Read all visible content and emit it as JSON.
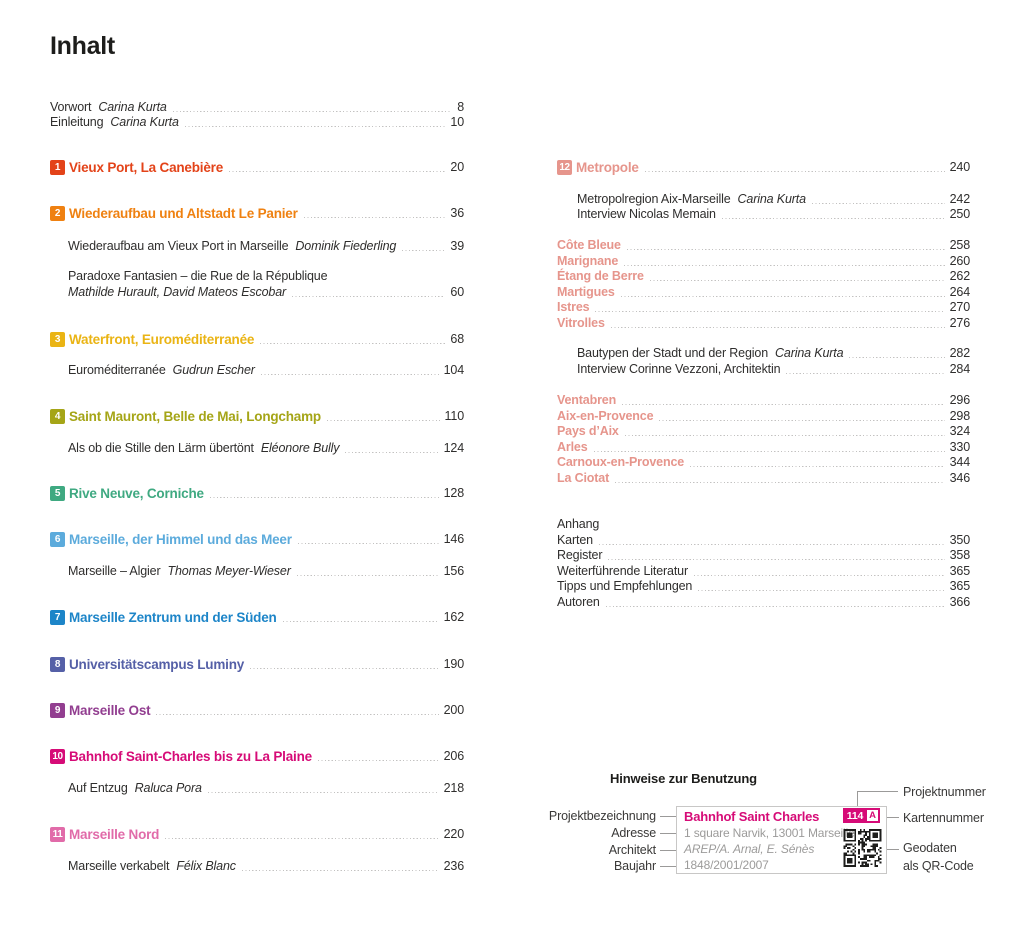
{
  "page_title": "Inhalt",
  "usage": {
    "heading": "Hinweise zur Benutzung",
    "left_labels": [
      "Projektbezeichnung",
      "Adresse",
      "Architekt",
      "Baujahr"
    ],
    "right_labels": [
      "Projektnummer",
      "Kartennummer",
      "Geodaten\nals QR-Code"
    ],
    "sample": {
      "title": "Bahnhof Saint Charles",
      "project_number": "114",
      "map_number": "A",
      "address": "1 square Narvik, 13001 Marseille",
      "architect": "AREP/A. Arnal, E. Sénès",
      "year": "1848/2001/2007"
    }
  },
  "toc_left": [
    {
      "type": "front",
      "text": "Vorwort",
      "author": "Carina Kurta",
      "page": "8"
    },
    {
      "type": "front",
      "text": "Einleitung",
      "author": "Carina Kurta",
      "page": "10"
    },
    {
      "type": "chapter",
      "num": "1",
      "color": "#e34319",
      "text": "Vieux Port, La Canebière",
      "page": "20"
    },
    {
      "type": "chapter",
      "num": "2",
      "color": "#ef8111",
      "text": "Wiederaufbau und Altstadt Le Panier",
      "page": "36"
    },
    {
      "type": "sub",
      "text": "Wiederaufbau am Vieux Port in Marseille",
      "author": "Dominik Fiederling",
      "page": "39"
    },
    {
      "type": "subline",
      "text": "Paradoxe Fantasien – die Rue de la République"
    },
    {
      "type": "subauthor",
      "author": "Mathilde Hurault, David Mateos Escobar",
      "page": "60"
    },
    {
      "type": "chapter",
      "num": "3",
      "color": "#eab414",
      "text": "Waterfront, Euroméditerranée",
      "page": "68"
    },
    {
      "type": "sub",
      "text": "Euroméditerranée",
      "author": "Gudrun Escher",
      "page": "104"
    },
    {
      "type": "chapter",
      "num": "4",
      "color": "#a5a517",
      "text": "Saint Mauront, Belle de Mai, Longchamp",
      "page": "110"
    },
    {
      "type": "sub",
      "text": "Als ob die Stille den Lärm übertönt",
      "author": "Eléonore Bully",
      "page": "124"
    },
    {
      "type": "chapter",
      "num": "5",
      "color": "#3fa981",
      "text": "Rive Neuve, Corniche",
      "page": "128"
    },
    {
      "type": "chapter",
      "num": "6",
      "color": "#5cabdc",
      "text": "Marseille, der Himmel und das Meer",
      "page": "146"
    },
    {
      "type": "sub",
      "text": "Marseille – Algier",
      "author": "Thomas Meyer-Wieser",
      "page": "156"
    },
    {
      "type": "chapter",
      "num": "7",
      "color": "#1d85c8",
      "text": "Marseille Zentrum und der Süden",
      "page": "162"
    },
    {
      "type": "chapter",
      "num": "8",
      "color": "#5560a7",
      "text": "Universitätscampus Luminy",
      "page": "190"
    },
    {
      "type": "chapter",
      "num": "9",
      "color": "#923e90",
      "text": "Marseille Ost",
      "page": "200"
    },
    {
      "type": "chapter",
      "num": "10",
      "color": "#d60b77",
      "text": "Bahnhof Saint-Charles bis zu La Plaine",
      "page": "206"
    },
    {
      "type": "sub",
      "text": "Auf Entzug",
      "author": "Raluca Pora",
      "page": "218"
    },
    {
      "type": "chapter",
      "num": "11",
      "color": "#e16ba9",
      "text": "Marseille Nord",
      "page": "220"
    },
    {
      "type": "sub",
      "text": "Marseille verkabelt",
      "author": "Félix Blanc",
      "page": "236"
    }
  ],
  "toc_right": [
    {
      "type": "chapter",
      "num": "12",
      "color": "#e6958c",
      "text": "Metropole",
      "page": "240"
    },
    {
      "type": "sub",
      "text": "Metropolregion Aix-Marseille",
      "author": "Carina Kurta",
      "page": "242"
    },
    {
      "type": "sub",
      "text": "Interview Nicolas Memain",
      "page": "250"
    },
    {
      "type": "place",
      "color": "#e6958c",
      "text": "Côte Bleue",
      "page": "258"
    },
    {
      "type": "place",
      "color": "#e6958c",
      "text": "Marignane",
      "page": "260"
    },
    {
      "type": "place",
      "color": "#e6958c",
      "text": "Étang de Berre",
      "page": "262"
    },
    {
      "type": "place",
      "color": "#e6958c",
      "text": "Martigues",
      "page": "264"
    },
    {
      "type": "place",
      "color": "#e6958c",
      "text": "Istres",
      "page": "270"
    },
    {
      "type": "place",
      "color": "#e6958c",
      "text": "Vitrolles",
      "page": "276"
    },
    {
      "type": "sub",
      "text": "Bautypen der Stadt und der Region",
      "author": "Carina Kurta",
      "page": "282"
    },
    {
      "type": "sub",
      "text": "Interview Corinne Vezzoni, Architektin",
      "page": "284"
    },
    {
      "type": "place",
      "color": "#e6958c",
      "text": "Ventabren",
      "page": "296"
    },
    {
      "type": "place",
      "color": "#e6958c",
      "text": "Aix-en-Provence",
      "page": "298"
    },
    {
      "type": "place",
      "color": "#e6958c",
      "text": "Pays d’Aix",
      "page": "324"
    },
    {
      "type": "place",
      "color": "#e6958c",
      "text": "Arles",
      "page": "330"
    },
    {
      "type": "place",
      "color": "#e6958c",
      "text": "Carnoux-en-Provence",
      "page": "344"
    },
    {
      "type": "place",
      "color": "#e6958c",
      "text": "La Ciotat",
      "page": "346"
    },
    {
      "type": "group",
      "text": "Anhang"
    },
    {
      "type": "plain",
      "text": "Karten",
      "page": "350"
    },
    {
      "type": "plain",
      "text": "Register",
      "page": "358"
    },
    {
      "type": "plain",
      "text": "Weiterführende Literatur",
      "page": "365"
    },
    {
      "type": "plain",
      "text": "Tipps und Empfehlungen",
      "page": "365"
    },
    {
      "type": "plain",
      "text": "Autoren",
      "page": "366"
    }
  ]
}
